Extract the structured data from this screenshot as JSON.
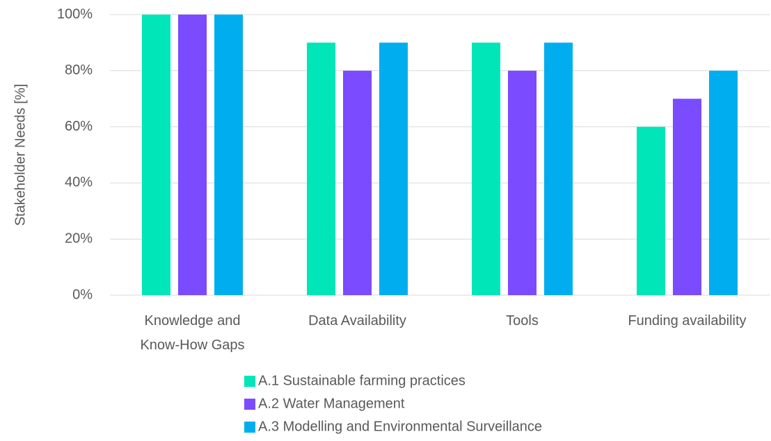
{
  "chart_data": {
    "type": "bar",
    "y_axis_label": "Stakeholder Needs [%]",
    "categories": [
      "Knowledge and\nKnow-How Gaps",
      "Data Availability",
      "Tools",
      "Funding availability"
    ],
    "series": [
      {
        "name": "A.1 Sustainable farming practices",
        "color": "#00e6b8",
        "values": [
          100,
          90,
          90,
          60
        ]
      },
      {
        "name": "A.2 Water Management",
        "color": "#7b4bff",
        "values": [
          100,
          80,
          80,
          70
        ]
      },
      {
        "name": "A.3 Modelling and Environmental Surveillance",
        "color": "#00aeef",
        "values": [
          100,
          90,
          90,
          80
        ]
      }
    ],
    "ylim": [
      0,
      100
    ],
    "yticks": [
      {
        "value": 0,
        "label": "0%"
      },
      {
        "value": 20,
        "label": "20%"
      },
      {
        "value": 40,
        "label": "40%"
      },
      {
        "value": 60,
        "label": "60%"
      },
      {
        "value": 80,
        "label": "80%"
      },
      {
        "value": 100,
        "label": "100%"
      }
    ],
    "grid": true,
    "legend": "bottom"
  }
}
